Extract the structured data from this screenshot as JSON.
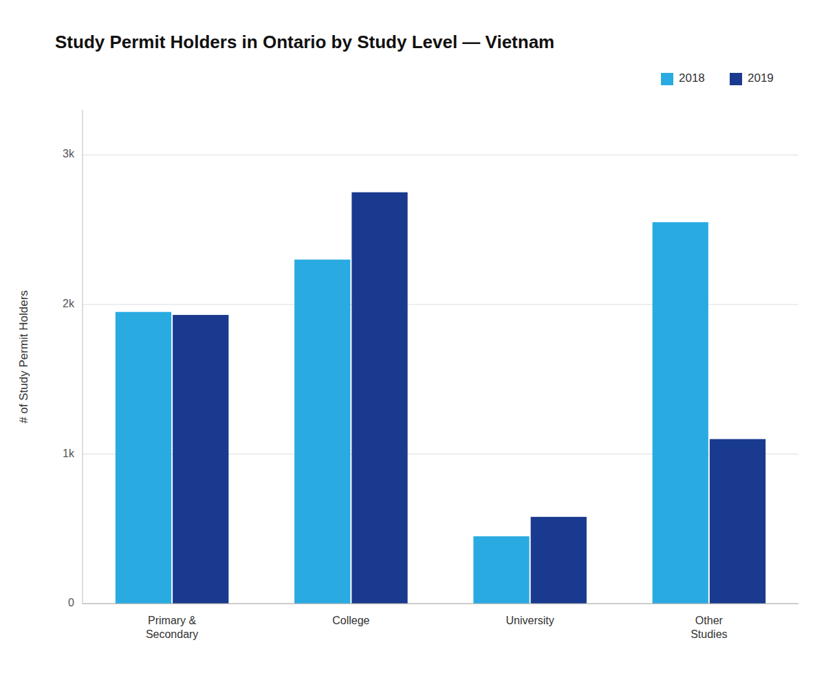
{
  "chart_data": {
    "type": "bar",
    "title": "Study Permit Holders in Ontario by Study Level — Vietnam",
    "ylabel": "# of Study Permit Holders",
    "categories": [
      "Primary &\nSecondary",
      "College",
      "University",
      "Other\nStudies"
    ],
    "series": [
      {
        "name": "2018",
        "color": "#29ABE2",
        "values": [
          1950,
          2300,
          450,
          2550
        ]
      },
      {
        "name": "2019",
        "color": "#1A3A8F",
        "values": [
          1930,
          2750,
          580,
          1100
        ]
      }
    ],
    "ylim": [
      0,
      3300
    ],
    "yticks": [
      0,
      {
        "value": 1000,
        "label": "1k"
      },
      {
        "value": 2000,
        "label": "2k"
      },
      {
        "value": 3000,
        "label": "3k"
      }
    ],
    "grid": true,
    "legend": "upper right"
  }
}
